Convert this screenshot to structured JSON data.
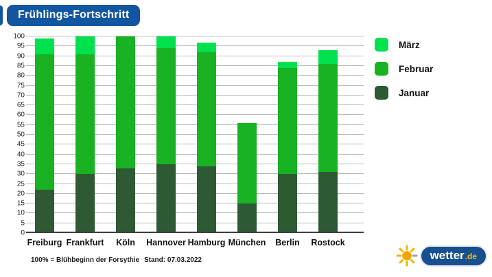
{
  "title": "Frühlings-Fortschritt",
  "legend": [
    {
      "label": "März",
      "color": "#00e14e"
    },
    {
      "label": "Februar",
      "color": "#18b223"
    },
    {
      "label": "Januar",
      "color": "#2e5a33"
    }
  ],
  "footer": {
    "note": "100% = Blühbeginn der Forsythie",
    "stand": "Stand: 07.03.2022"
  },
  "logo": {
    "name": "wetter",
    "tld": ".de"
  },
  "colors": {
    "badge_blue": "#1255a0",
    "gridline": "#b9b9b9",
    "axis": "#3d3d3d",
    "logo_pill_blue": "#174f8f",
    "logo_gold": "#f2c200",
    "sun_yellow": "#f0b400"
  },
  "chart_data": {
    "type": "bar",
    "stacked": true,
    "title": "Frühlings-Fortschritt",
    "categories": [
      "Freiburg",
      "Frankfurt",
      "Köln",
      "Hannover",
      "Hamburg",
      "München",
      "Berlin",
      "Rostock"
    ],
    "series": [
      {
        "name": "Januar",
        "color": "#2e5a33",
        "values": [
          22,
          30,
          33,
          35,
          34,
          15,
          30,
          31
        ]
      },
      {
        "name": "Februar",
        "color": "#18b223",
        "values": [
          69,
          61,
          67,
          59,
          58,
          41,
          54,
          55
        ]
      },
      {
        "name": "März",
        "color": "#00e14e",
        "values": [
          8,
          9,
          0,
          6,
          5,
          0,
          3,
          7
        ]
      }
    ],
    "totals": [
      99,
      100,
      100,
      100,
      97,
      56,
      87,
      93
    ],
    "unit": "percent",
    "ylim": [
      0,
      100
    ],
    "ytick_step": 5,
    "grid": true,
    "legend_position": "right"
  }
}
